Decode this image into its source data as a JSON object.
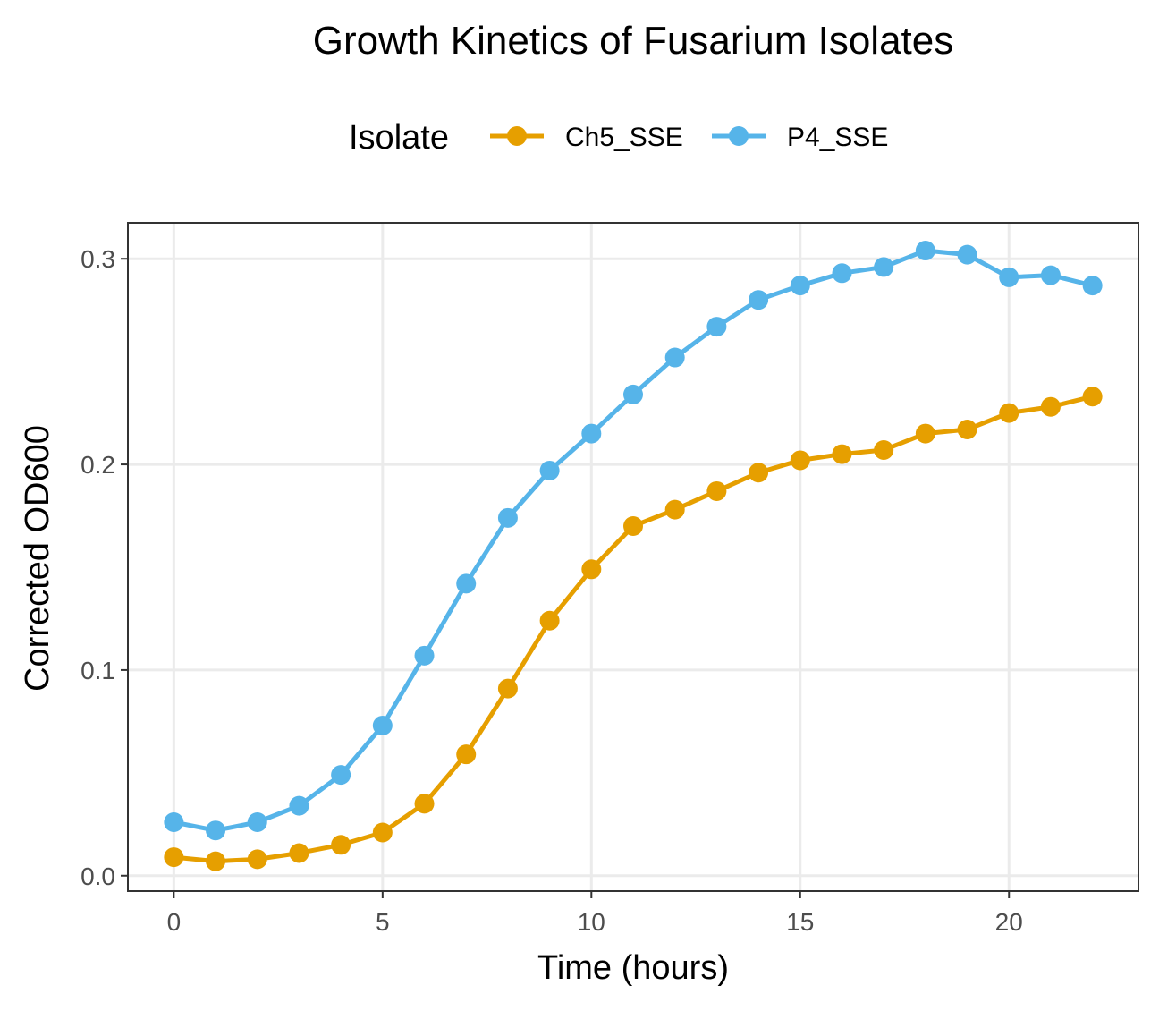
{
  "chart_data": {
    "type": "line",
    "title": "Growth Kinetics of Fusarium Isolates",
    "xlabel": "Time (hours)",
    "ylabel": "Corrected OD600",
    "xlim": [
      -1.1,
      23.1
    ],
    "ylim": [
      -0.0075,
      0.3175
    ],
    "xticks": [
      0,
      5,
      10,
      15,
      20
    ],
    "xtick_labels": [
      "0",
      "5",
      "10",
      "15",
      "20"
    ],
    "yticks": [
      0.0,
      0.1,
      0.2,
      0.3
    ],
    "ytick_labels": [
      "0.0",
      "0.1",
      "0.2",
      "0.3"
    ],
    "grid": true,
    "legend": {
      "title": "Isolate",
      "position": "top"
    },
    "x": [
      0,
      1,
      2,
      3,
      4,
      5,
      6,
      7,
      8,
      9,
      10,
      11,
      12,
      13,
      14,
      15,
      16,
      17,
      18,
      19,
      20,
      21,
      22
    ],
    "series": [
      {
        "name": "Ch5_SSE",
        "color": "#E69F00",
        "values": [
          0.009,
          0.007,
          0.008,
          0.011,
          0.015,
          0.021,
          0.035,
          0.059,
          0.091,
          0.124,
          0.149,
          0.17,
          0.178,
          0.187,
          0.196,
          0.202,
          0.205,
          0.207,
          0.215,
          0.217,
          0.225,
          0.228,
          0.233
        ]
      },
      {
        "name": "P4_SSE",
        "color": "#56B4E9",
        "values": [
          0.026,
          0.022,
          0.026,
          0.034,
          0.049,
          0.073,
          0.107,
          0.142,
          0.174,
          0.197,
          0.215,
          0.234,
          0.252,
          0.267,
          0.28,
          0.287,
          0.293,
          0.296,
          0.304,
          0.302,
          0.291,
          0.292,
          0.287
        ]
      }
    ]
  }
}
